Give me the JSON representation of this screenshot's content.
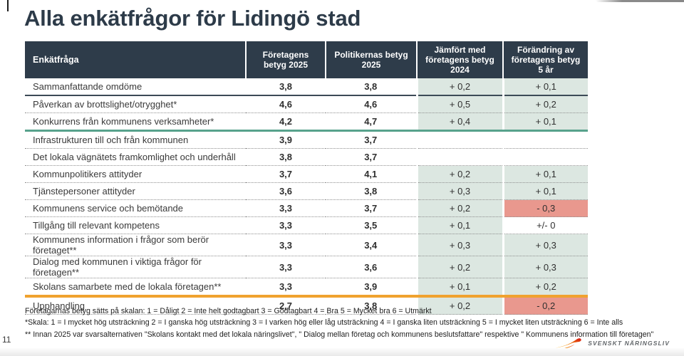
{
  "title": "Alla enkätfrågor för Lidingö stad",
  "page_number": "11",
  "table": {
    "headers": [
      "Enkätfråga",
      "Företagens betyg 2025",
      "Politikernas betyg 2025",
      "Jämfört med företagens betyg 2024",
      "Förändring av företagens betyg 5 år"
    ],
    "rows": [
      {
        "question": "Sammanfattande omdöme",
        "company": "3,8",
        "politicians": "3,8",
        "vs_2024": "+ 0,2",
        "change_5yr": "+ 0,1",
        "vs_2024_bg": "green",
        "change_5yr_bg": "green",
        "divider": "solid"
      },
      {
        "question": "Påverkan av brottslighet/otrygghet*",
        "company": "4,6",
        "politicians": "4,6",
        "vs_2024": "+ 0,5",
        "change_5yr": "+ 0,2",
        "vs_2024_bg": "green",
        "change_5yr_bg": "green",
        "divider": "dotted"
      },
      {
        "question": "Konkurrens från kommunens verksamheter*",
        "company": "4,2",
        "politicians": "4,7",
        "vs_2024": "+ 0,4",
        "change_5yr": "+ 0,1",
        "vs_2024_bg": "green",
        "change_5yr_bg": "green",
        "divider": "teal"
      },
      {
        "question": "Infrastrukturen till och från kommunen",
        "company": "3,9",
        "politicians": "3,7",
        "vs_2024": "",
        "change_5yr": "",
        "vs_2024_bg": "none",
        "change_5yr_bg": "none",
        "divider": "dotted"
      },
      {
        "question": "Det lokala vägnätets framkomlighet och underhåll",
        "company": "3,8",
        "politicians": "3,7",
        "vs_2024": "",
        "change_5yr": "",
        "vs_2024_bg": "none",
        "change_5yr_bg": "none",
        "divider": "dotted"
      },
      {
        "question": "Kommunpolitikers attityder",
        "company": "3,7",
        "politicians": "4,1",
        "vs_2024": "+ 0,2",
        "change_5yr": "+ 0,1",
        "vs_2024_bg": "green",
        "change_5yr_bg": "green",
        "divider": "dotted"
      },
      {
        "question": "Tjänstepersoner attityder",
        "company": "3,6",
        "politicians": "3,8",
        "vs_2024": "+ 0,3",
        "change_5yr": "+ 0,1",
        "vs_2024_bg": "green",
        "change_5yr_bg": "green",
        "divider": "dotted"
      },
      {
        "question": "Kommunens service och bemötande",
        "company": "3,3",
        "politicians": "3,7",
        "vs_2024": "+ 0,2",
        "change_5yr": "- 0,3",
        "vs_2024_bg": "green",
        "change_5yr_bg": "red",
        "divider": "dotted"
      },
      {
        "question": "Tillgång till relevant kompetens",
        "company": "3,3",
        "politicians": "3,5",
        "vs_2024": "+ 0,1",
        "change_5yr": "+/- 0",
        "vs_2024_bg": "green",
        "change_5yr_bg": "none",
        "divider": "dotted"
      },
      {
        "question": "Kommunens information i frågor som berör företaget**",
        "company": "3,3",
        "politicians": "3,4",
        "vs_2024": "+ 0,3",
        "change_5yr": "+ 0,3",
        "vs_2024_bg": "green",
        "change_5yr_bg": "green",
        "divider": "dotted"
      },
      {
        "question": "Dialog med kommunen i viktiga frågor för företagen**",
        "company": "3,3",
        "politicians": "3,6",
        "vs_2024": "+ 0,2",
        "change_5yr": "+ 0,3",
        "vs_2024_bg": "green",
        "change_5yr_bg": "green",
        "divider": "dotted"
      },
      {
        "question": "Skolans samarbete med de lokala företagen**",
        "company": "3,3",
        "politicians": "3,9",
        "vs_2024": "+ 0,1",
        "change_5yr": "+ 0,2",
        "vs_2024_bg": "green",
        "change_5yr_bg": "green",
        "divider": "orange"
      },
      {
        "question": "Upphandling",
        "company": "2,7",
        "politicians": "3,8",
        "vs_2024": "+ 0,2",
        "change_5yr": "- 0,2",
        "vs_2024_bg": "green",
        "change_5yr_bg": "red",
        "divider": "dotted"
      }
    ]
  },
  "footnotes": [
    "Företagarnas betyg sätts på skalan: 1 = Dåligt 2 = Inte helt godtagbart 3 = Godtagbart 4 = Bra 5 = Mycket bra 6 = Utmärkt",
    "*Skala: 1 = I mycket hög utsträckning 2 = I ganska hög utsträckning 3 = I varken hög eller låg utsträckning 4 = I ganska liten utsträckning 5 = I mycket liten utsträckning 6 = Inte alls",
    "** Innan 2025  var svarsalternativen \"Skolans kontakt med det lokala näringslivet\", \" Dialog mellan företag och kommunens beslutsfattare\" respektive \" Kommunens information till företagen\""
  ],
  "logo": {
    "text": "SVENSKT NÄRINGSLIV"
  },
  "colors": {
    "header_bg": "#2e3c4a",
    "positive_cell": "#dce7e1",
    "negative_cell": "#e9988e",
    "teal_divider": "#57a28c",
    "orange_divider": "#f0a22f",
    "flame_gradient": [
      "#f9b000",
      "#ee7203",
      "#d51317"
    ]
  }
}
